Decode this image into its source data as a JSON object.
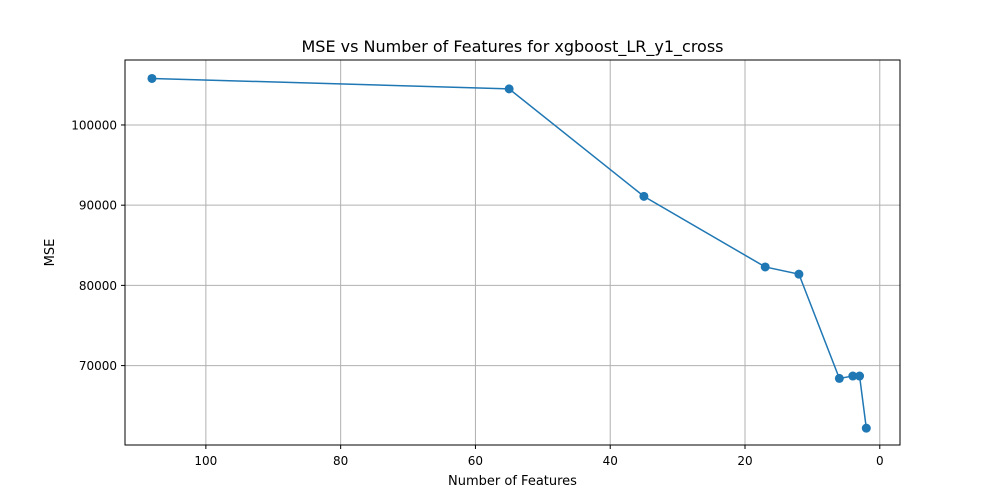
{
  "chart_data": {
    "type": "line",
    "title": "MSE vs Number of Features for xgboost_LR_y1_cross",
    "xlabel": "Number of Features",
    "ylabel": "MSE",
    "x_inverted": true,
    "xlim": [
      112,
      -3
    ],
    "ylim": [
      60100,
      108100
    ],
    "x_ticks": [
      100,
      80,
      60,
      40,
      20,
      0
    ],
    "y_ticks": [
      70000,
      80000,
      90000,
      100000
    ],
    "grid": true,
    "series": [
      {
        "color": "#1f77b4",
        "marker": "circle",
        "x": [
          108,
          55,
          35,
          17,
          12,
          6,
          4,
          3,
          2
        ],
        "y": [
          105800,
          104500,
          91100,
          82300,
          81400,
          68400,
          68700,
          68700,
          62200
        ]
      }
    ]
  }
}
